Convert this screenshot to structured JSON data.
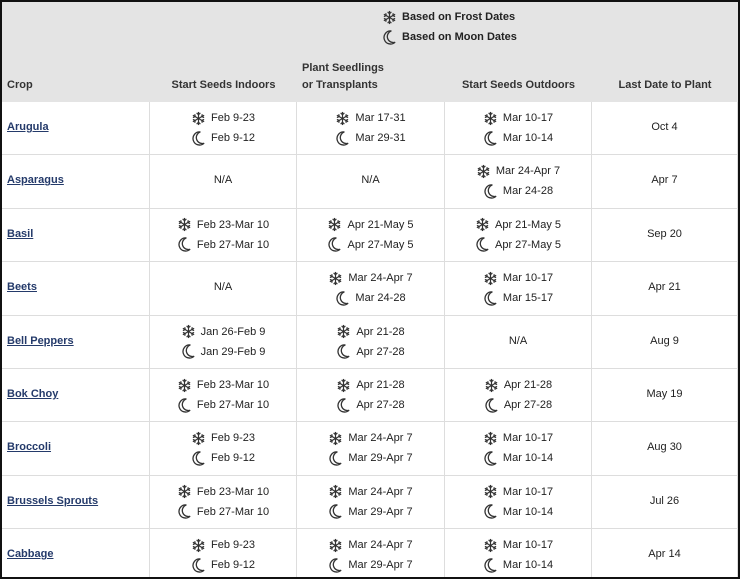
{
  "legend": {
    "frost": "Based on Frost Dates",
    "moon": "Based on Moon Dates"
  },
  "table": {
    "headers": [
      "Crop",
      "Start Seeds Indoors",
      "Plant Seedlings",
      "or Transplants",
      "Start Seeds Outdoors",
      "Last Date to Plant"
    ],
    "rows": [
      [
        "Arugula",
        {
          "frost": "Feb 9-23",
          "moon": "Feb 9-12"
        },
        {
          "frost": "Mar 17-31",
          "moon": "Mar 29-31"
        },
        {
          "frost": "Mar 10-17",
          "moon": "Mar 10-14"
        },
        "Oct 4"
      ],
      [
        "Asparagus",
        "N/A",
        "N/A",
        {
          "frost": "Mar 24-Apr 7",
          "moon": "Mar 24-28"
        },
        "Apr 7"
      ],
      [
        "Basil",
        {
          "frost": "Feb 23-Mar 10",
          "moon": "Feb 27-Mar 10"
        },
        {
          "frost": "Apr 21-May 5",
          "moon": "Apr 27-May 5"
        },
        {
          "frost": "Apr 21-May 5",
          "moon": "Apr 27-May 5"
        },
        "Sep 20"
      ],
      [
        "Beets",
        "N/A",
        {
          "frost": "Mar 24-Apr 7",
          "moon": "Mar 24-28"
        },
        {
          "frost": "Mar 10-17",
          "moon": "Mar 15-17"
        },
        "Apr 21"
      ],
      [
        "Bell Peppers",
        {
          "frost": "Jan 26-Feb 9",
          "moon": "Jan 29-Feb 9"
        },
        {
          "frost": "Apr 21-28",
          "moon": "Apr 27-28"
        },
        "N/A",
        "Aug 9"
      ],
      [
        "Bok Choy",
        {
          "frost": "Feb 23-Mar 10",
          "moon": "Feb 27-Mar 10"
        },
        {
          "frost": "Apr 21-28",
          "moon": "Apr 27-28"
        },
        {
          "frost": "Apr 21-28",
          "moon": "Apr 27-28"
        },
        "May 19"
      ],
      [
        "Broccoli",
        {
          "frost": "Feb 9-23",
          "moon": "Feb 9-12"
        },
        {
          "frost": "Mar 24-Apr 7",
          "moon": "Mar 29-Apr 7"
        },
        {
          "frost": "Mar 10-17",
          "moon": "Mar 10-14"
        },
        "Aug 30"
      ],
      [
        "Brussels Sprouts",
        {
          "frost": "Feb 23-Mar 10",
          "moon": "Feb 27-Mar 10"
        },
        {
          "frost": "Mar 24-Apr 7",
          "moon": "Mar 29-Apr 7"
        },
        {
          "frost": "Mar 10-17",
          "moon": "Mar 10-14"
        },
        "Jul 26"
      ],
      [
        "Cabbage",
        {
          "frost": "Feb 9-23",
          "moon": "Feb 9-12"
        },
        {
          "frost": "Mar 24-Apr 7",
          "moon": "Mar 29-Apr 7"
        },
        {
          "frost": "Mar 10-17",
          "moon": "Mar 10-14"
        },
        "Apr 14"
      ]
    ]
  }
}
